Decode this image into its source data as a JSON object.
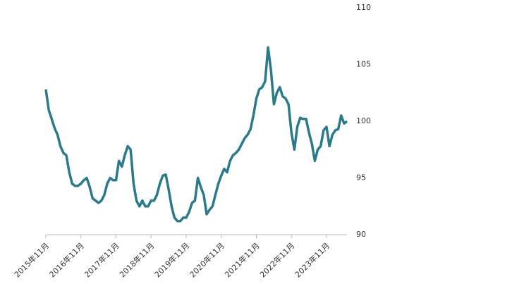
{
  "chart_data": {
    "type": "line",
    "color": "#2a7a8c",
    "categories": [
      "2015年11月",
      null,
      null,
      null,
      null,
      null,
      null,
      null,
      null,
      null,
      null,
      null,
      "2016年11月",
      null,
      null,
      null,
      null,
      null,
      null,
      null,
      null,
      null,
      null,
      null,
      "2017年11月",
      null,
      null,
      null,
      null,
      null,
      null,
      null,
      null,
      null,
      null,
      null,
      "2018年11月",
      null,
      null,
      null,
      null,
      null,
      null,
      null,
      null,
      null,
      null,
      null,
      "2019年11月",
      null,
      null,
      null,
      null,
      null,
      null,
      null,
      null,
      null,
      null,
      null,
      "2020年11月",
      null,
      null,
      null,
      null,
      null,
      null,
      null,
      null,
      null,
      null,
      null,
      "2021年11月",
      null,
      null,
      null,
      null,
      null,
      null,
      null,
      null,
      null,
      null,
      null,
      "2022年11月",
      null,
      null,
      null,
      null,
      null,
      null,
      null,
      null,
      null,
      null,
      null,
      "2023年11月",
      null,
      null,
      null,
      null,
      null,
      null,
      null
    ],
    "values": [
      102.8,
      101.0,
      100.2,
      99.4,
      98.8,
      97.8,
      97.2,
      97.0,
      95.5,
      94.5,
      94.3,
      94.3,
      94.5,
      94.8,
      95.0,
      94.2,
      93.2,
      93.0,
      92.8,
      93.0,
      93.5,
      94.5,
      95.0,
      94.8,
      94.8,
      96.5,
      96.0,
      97.0,
      97.8,
      97.5,
      94.5,
      93.0,
      92.5,
      93.0,
      92.5,
      92.5,
      93.0,
      93.0,
      93.5,
      94.5,
      95.2,
      95.3,
      94.0,
      92.5,
      91.5,
      91.2,
      91.2,
      91.5,
      91.5,
      92.0,
      92.8,
      93.0,
      95.0,
      94.2,
      93.5,
      91.8,
      92.2,
      92.5,
      93.5,
      94.5,
      95.2,
      95.8,
      95.5,
      96.5,
      97.0,
      97.2,
      97.5,
      98.0,
      98.5,
      98.8,
      99.3,
      100.5,
      102.0,
      102.8,
      103.0,
      103.5,
      106.5,
      104.5,
      101.5,
      102.5,
      103.0,
      102.2,
      102.0,
      101.5,
      99.0,
      97.5,
      99.5,
      100.3,
      100.2,
      100.2,
      99.0,
      98.0,
      96.5,
      97.5,
      97.8,
      99.2,
      99.5,
      97.8,
      98.8,
      99.2,
      99.3,
      100.5,
      99.8,
      100.0
    ],
    "ylim": [
      90,
      110
    ],
    "yticks": [
      90,
      95,
      100,
      105,
      110
    ]
  }
}
